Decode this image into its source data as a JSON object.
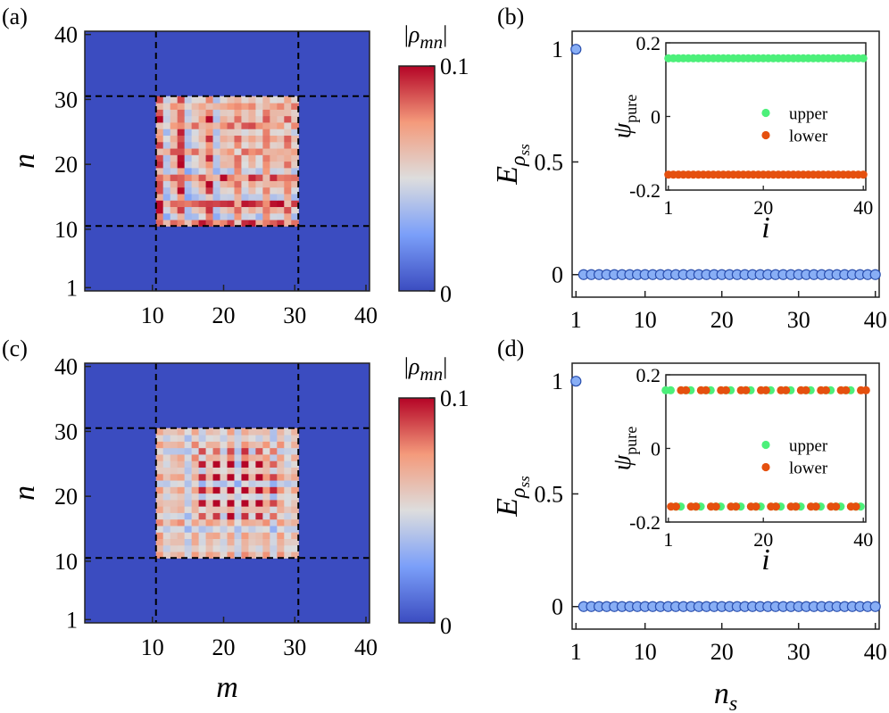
{
  "chart_data": [
    {
      "panel": "(a)",
      "type": "heatmap",
      "xlabel": "m",
      "ylabel": "n",
      "xticks": [
        "10",
        "20",
        "30",
        "40"
      ],
      "yticks": [
        "1",
        "10",
        "20",
        "30",
        "40"
      ],
      "xlim": [
        1,
        40
      ],
      "ylim": [
        1,
        40
      ],
      "block_range": [
        11,
        30
      ],
      "dashed_lines": [
        10.5,
        30.5
      ],
      "colorbar": {
        "label": "|ρ_mn|",
        "label_display": "|ρmn|",
        "min": 0,
        "max": 0.1,
        "ticks": [
          "0",
          "0.1"
        ]
      },
      "pattern": "broad-stripes",
      "hot_lines": [
        11,
        14,
        18,
        22,
        26,
        29
      ],
      "note": "nonzero 20x20 block (m,n in 11..30), striped pattern; zero elsewhere"
    },
    {
      "panel": "(b)",
      "type": "scatter",
      "xlabel": "n_s",
      "ylabel": "E_ρss",
      "xticks": [
        "1",
        "10",
        "20",
        "30",
        "40"
      ],
      "yticks": [
        "0",
        "0.5",
        "1"
      ],
      "xlim": [
        0.5,
        40.5
      ],
      "ylim": [
        -0.1,
        1.08
      ],
      "x": [
        1,
        2,
        3,
        4,
        5,
        6,
        7,
        8,
        9,
        10,
        11,
        12,
        13,
        14,
        15,
        16,
        17,
        18,
        19,
        20,
        21,
        22,
        23,
        24,
        25,
        26,
        27,
        28,
        29,
        30,
        31,
        32,
        33,
        34,
        35,
        36,
        37,
        38,
        39,
        40
      ],
      "values": [
        1,
        0,
        0,
        0,
        0,
        0,
        0,
        0,
        0,
        0,
        0,
        0,
        0,
        0,
        0,
        0,
        0,
        0,
        0,
        0,
        0,
        0,
        0,
        0,
        0,
        0,
        0,
        0,
        0,
        0,
        0,
        0,
        0,
        0,
        0,
        0,
        0,
        0,
        0,
        0
      ],
      "inset": {
        "type": "scatter",
        "xlabel": "i",
        "ylabel": "ψ_pure",
        "xticks": [
          "1",
          "20",
          "40"
        ],
        "yticks": [
          "-0.2",
          "0",
          "0.2"
        ],
        "xlim": [
          0.5,
          40.5
        ],
        "ylim": [
          -0.2,
          0.2
        ],
        "series": [
          {
            "name": "upper",
            "color": "#4cf07a",
            "values": [
              0.158,
              0.158,
              0.158,
              0.158,
              0.158,
              0.158,
              0.158,
              0.158,
              0.158,
              0.158,
              0.158,
              0.158,
              0.158,
              0.158,
              0.158,
              0.158,
              0.158,
              0.158,
              0.158,
              0.158,
              0.158,
              0.158,
              0.158,
              0.158,
              0.158,
              0.158,
              0.158,
              0.158,
              0.158,
              0.158,
              0.158,
              0.158,
              0.158,
              0.158,
              0.158,
              0.158,
              0.158,
              0.158,
              0.158,
              0.158
            ]
          },
          {
            "name": "lower",
            "color": "#e5500f",
            "values": [
              -0.158,
              -0.158,
              -0.158,
              -0.158,
              -0.158,
              -0.158,
              -0.158,
              -0.158,
              -0.158,
              -0.158,
              -0.158,
              -0.158,
              -0.158,
              -0.158,
              -0.158,
              -0.158,
              -0.158,
              -0.158,
              -0.158,
              -0.158,
              -0.158,
              -0.158,
              -0.158,
              -0.158,
              -0.158,
              -0.158,
              -0.158,
              -0.158,
              -0.158,
              -0.158,
              -0.158,
              -0.158,
              -0.158,
              -0.158,
              -0.158,
              -0.158,
              -0.158,
              -0.158,
              -0.158,
              -0.158
            ]
          }
        ],
        "legend": "center-right"
      }
    },
    {
      "panel": "(c)",
      "type": "heatmap",
      "xlabel": "m",
      "ylabel": "n",
      "xticks": [
        "10",
        "20",
        "30",
        "40"
      ],
      "yticks": [
        "1",
        "10",
        "20",
        "30",
        "40"
      ],
      "xlim": [
        1,
        40
      ],
      "ylim": [
        1,
        40
      ],
      "block_range": [
        11,
        30
      ],
      "dashed_lines": [
        10.5,
        30.5
      ],
      "colorbar": {
        "label": "|ρ_mn|",
        "label_display": "|ρmn|",
        "min": 0,
        "max": 0.1,
        "ticks": [
          "0",
          "0.1"
        ]
      },
      "pattern": "checkerboard",
      "hot_lines": [
        17,
        19,
        21,
        23,
        25,
        27
      ],
      "note": "nonzero 20x20 block (m,n in 11..30), checkerboard-like pattern; zero elsewhere"
    },
    {
      "panel": "(d)",
      "type": "scatter",
      "xlabel": "n_s",
      "ylabel": "E_ρss",
      "xticks": [
        "1",
        "10",
        "20",
        "30",
        "40"
      ],
      "yticks": [
        "0",
        "0.5",
        "1"
      ],
      "xlim": [
        0.5,
        40.5
      ],
      "ylim": [
        -0.1,
        1.08
      ],
      "x": [
        1,
        2,
        3,
        4,
        5,
        6,
        7,
        8,
        9,
        10,
        11,
        12,
        13,
        14,
        15,
        16,
        17,
        18,
        19,
        20,
        21,
        22,
        23,
        24,
        25,
        26,
        27,
        28,
        29,
        30,
        31,
        32,
        33,
        34,
        35,
        36,
        37,
        38,
        39,
        40
      ],
      "values": [
        1,
        0,
        0,
        0,
        0,
        0,
        0,
        0,
        0,
        0,
        0,
        0,
        0,
        0,
        0,
        0,
        0,
        0,
        0,
        0,
        0,
        0,
        0,
        0,
        0,
        0,
        0,
        0,
        0,
        0,
        0,
        0,
        0,
        0,
        0,
        0,
        0,
        0,
        0,
        0
      ],
      "inset": {
        "type": "scatter",
        "xlabel": "i",
        "ylabel": "ψ_pure",
        "xticks": [
          "1",
          "20",
          "40"
        ],
        "yticks": [
          "-0.2",
          "0",
          "0.2"
        ],
        "xlim": [
          0.5,
          40.5
        ],
        "ylim": [
          -0.2,
          0.2
        ],
        "series": [
          {
            "name": "upper",
            "color": "#4cf07a",
            "values": [
              0.158,
              0.158,
              -0.158,
              -0.158,
              0.158,
              0.158,
              -0.158,
              -0.158,
              0.158,
              0.158,
              -0.158,
              -0.158,
              0.158,
              0.158,
              -0.158,
              -0.158,
              0.158,
              0.158,
              -0.158,
              -0.158,
              0.158,
              0.158,
              -0.158,
              -0.158,
              0.158,
              0.158,
              -0.158,
              -0.158,
              0.158,
              0.158,
              -0.158,
              -0.158,
              0.158,
              0.158,
              -0.158,
              -0.158,
              0.158,
              0.158,
              -0.158,
              -0.158
            ]
          },
          {
            "name": "lower",
            "color": "#e5500f",
            "values": [
              -0.158,
              -0.158,
              0.158,
              0.158,
              -0.158,
              -0.158,
              0.158,
              0.158,
              -0.158,
              -0.158,
              0.158,
              0.158,
              -0.158,
              -0.158,
              0.158,
              0.158,
              -0.158,
              -0.158,
              0.158,
              0.158,
              -0.158,
              -0.158,
              0.158,
              0.158,
              -0.158,
              -0.158,
              0.158,
              0.158,
              -0.158,
              -0.158,
              0.158,
              0.158,
              -0.158,
              -0.158,
              0.158,
              0.158,
              -0.158,
              -0.158,
              0.158,
              0.158
            ]
          }
        ],
        "legend": "center-right"
      }
    }
  ]
}
